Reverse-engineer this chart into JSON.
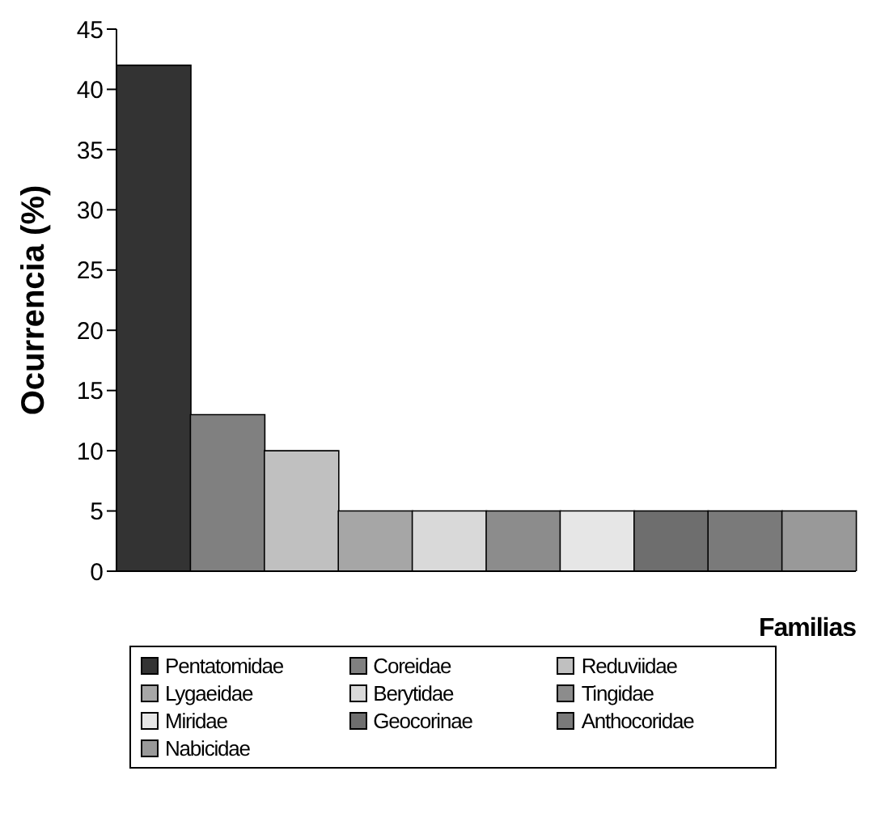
{
  "chart_data": {
    "type": "bar",
    "xlabel": "Familias",
    "ylabel": "Ocurrencia (%)",
    "categories": [
      null,
      null,
      null,
      null,
      null,
      null,
      null,
      null,
      null,
      null
    ],
    "series": [
      {
        "name": "Pentatomidae",
        "color": "#333333",
        "values": [
          42,
          null,
          null,
          null,
          null,
          null,
          null,
          null,
          null,
          null
        ]
      },
      {
        "name": "Coreidae",
        "color": "#808080",
        "values": [
          null,
          13,
          null,
          null,
          null,
          null,
          null,
          null,
          null,
          null
        ]
      },
      {
        "name": "Reduviidae",
        "color": "#c0c0c0",
        "values": [
          null,
          null,
          10,
          null,
          null,
          null,
          null,
          null,
          null,
          null
        ]
      },
      {
        "name": "Lygaeidae",
        "color": "#a6a6a6",
        "values": [
          null,
          null,
          null,
          5,
          null,
          null,
          null,
          null,
          null,
          null
        ]
      },
      {
        "name": "Berytidae",
        "color": "#d9d9d9",
        "values": [
          null,
          null,
          null,
          null,
          5,
          null,
          null,
          null,
          null,
          null
        ]
      },
      {
        "name": "Tingidae",
        "color": "#8c8c8c",
        "values": [
          null,
          null,
          null,
          null,
          null,
          5,
          null,
          null,
          null,
          null
        ]
      },
      {
        "name": "Miridae",
        "color": "#e6e6e6",
        "values": [
          null,
          null,
          null,
          null,
          null,
          null,
          5,
          null,
          null,
          null
        ]
      },
      {
        "name": "Geocorinae",
        "color": "#6e6e6e",
        "values": [
          null,
          null,
          null,
          null,
          null,
          null,
          null,
          5,
          null,
          null
        ]
      },
      {
        "name": "Anthocoridae",
        "color": "#7a7a7a",
        "values": [
          null,
          null,
          null,
          null,
          null,
          null,
          null,
          null,
          5,
          null
        ]
      },
      {
        "name": "Nabicidae",
        "color": "#999999",
        "values": [
          null,
          null,
          null,
          null,
          null,
          null,
          null,
          null,
          null,
          5
        ]
      }
    ],
    "ylim": [
      0,
      45
    ],
    "yticks": [
      0,
      5,
      10,
      15,
      20,
      25,
      30,
      35,
      40,
      45
    ],
    "grid": false,
    "legend": "bottom",
    "tick_labels": "y"
  }
}
